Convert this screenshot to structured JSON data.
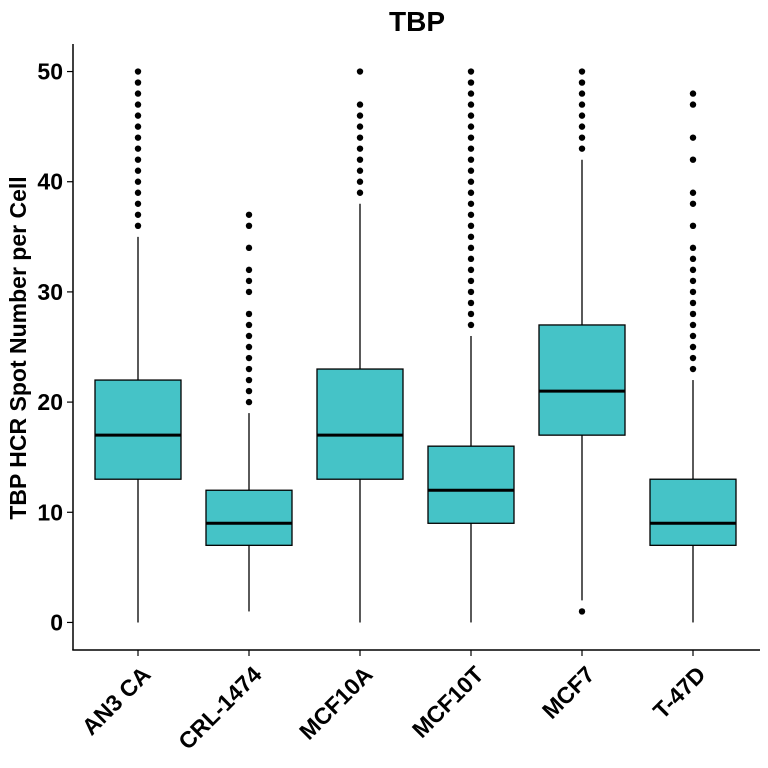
{
  "chart_data": {
    "type": "box",
    "title": "TBP",
    "xlabel": "",
    "ylabel": "TBP HCR Spot Number per Cell",
    "ylim": [
      -2.5,
      52.5
    ],
    "yticks": [
      0,
      10,
      20,
      30,
      40,
      50
    ],
    "grid": false,
    "legend": "none",
    "fill_color": "#45C3C7",
    "categories": [
      "AN3 CA",
      "CRL-1474",
      "MCF10A",
      "MCF10T",
      "MCF7",
      "T-47D"
    ],
    "boxes": [
      {
        "category": "AN3 CA",
        "whisker_low": 0,
        "q1": 13,
        "median": 17,
        "q3": 22,
        "whisker_high": 35,
        "outliers": [
          36,
          37,
          38,
          39,
          40,
          41,
          42,
          43,
          44,
          45,
          46,
          47,
          48,
          49,
          50
        ]
      },
      {
        "category": "CRL-1474",
        "whisker_low": 1,
        "q1": 7,
        "median": 9,
        "q3": 12,
        "whisker_high": 19,
        "outliers": [
          20,
          21,
          22,
          23,
          24,
          25,
          26,
          27,
          28,
          30,
          31,
          32,
          34,
          36,
          37
        ]
      },
      {
        "category": "MCF10A",
        "whisker_low": 0,
        "q1": 13,
        "median": 17,
        "q3": 23,
        "whisker_high": 38,
        "outliers": [
          39,
          40,
          41,
          42,
          43,
          44,
          45,
          46,
          47,
          50
        ]
      },
      {
        "category": "MCF10T",
        "whisker_low": 0,
        "q1": 9,
        "median": 12,
        "q3": 16,
        "whisker_high": 26,
        "outliers": [
          27,
          28,
          29,
          30,
          31,
          32,
          33,
          34,
          35,
          36,
          37,
          38,
          39,
          40,
          41,
          42,
          43,
          44,
          45,
          46,
          47,
          48,
          49,
          50
        ]
      },
      {
        "category": "MCF7",
        "whisker_low": 2,
        "q1": 17,
        "median": 21,
        "q3": 27,
        "whisker_high": 42,
        "outliers": [
          1,
          43,
          44,
          45,
          46,
          47,
          48,
          49,
          50
        ]
      },
      {
        "category": "T-47D",
        "whisker_low": 0,
        "q1": 7,
        "median": 9,
        "q3": 13,
        "whisker_high": 22,
        "outliers": [
          23,
          24,
          25,
          26,
          27,
          28,
          29,
          30,
          31,
          32,
          33,
          34,
          36,
          38,
          39,
          42,
          44,
          47,
          48
        ]
      }
    ]
  }
}
